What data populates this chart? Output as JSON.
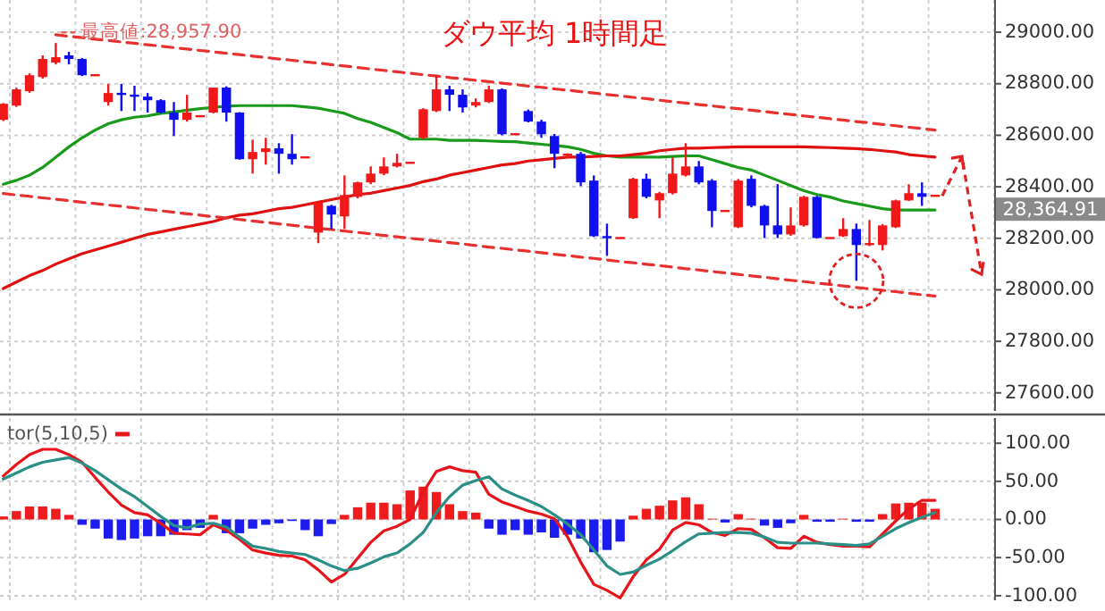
{
  "chart_data": [
    {
      "type": "candlestick",
      "title": "ダウ平均 1時間足",
      "categories": [
        null,
        null,
        null,
        null,
        null,
        null,
        null,
        null,
        null,
        null,
        null,
        null,
        null,
        null,
        null,
        null,
        null,
        null,
        null,
        null,
        null,
        null,
        null,
        null,
        null,
        null,
        null,
        null,
        null,
        null,
        null,
        null,
        null,
        null,
        null,
        null,
        null,
        null,
        null,
        null,
        null,
        null,
        null,
        null,
        null,
        null,
        null,
        null,
        null,
        null,
        null,
        null,
        null,
        null,
        null,
        null,
        null,
        null,
        null,
        null,
        null,
        null,
        null,
        null,
        null,
        null,
        null,
        null,
        null,
        null,
        null,
        null
      ],
      "ohlc": [
        [
          28660,
          28725,
          28655,
          28722
        ],
        [
          28715,
          28785,
          28710,
          28778
        ],
        [
          28771,
          28840,
          28765,
          28833
        ],
        [
          28826,
          28910,
          28820,
          28896
        ],
        [
          28882,
          28958,
          28875,
          28903
        ],
        [
          28910,
          28924,
          28875,
          28896
        ],
        [
          28896,
          28900,
          28830,
          28833
        ],
        [
          28833,
          28835,
          28830,
          28833
        ],
        [
          28729,
          28799,
          28715,
          28764
        ],
        [
          28764,
          28799,
          28694,
          28757
        ],
        [
          28757,
          28792,
          28694,
          28750
        ],
        [
          28750,
          28764,
          28688,
          28736
        ],
        [
          28736,
          28740,
          28685,
          28688
        ],
        [
          28688,
          28729,
          28597,
          28660
        ],
        [
          28660,
          28757,
          28653,
          28688
        ],
        [
          28674,
          28676,
          28672,
          28674
        ],
        [
          28688,
          28785,
          28685,
          28785
        ],
        [
          28785,
          28790,
          28653,
          28688
        ],
        [
          28688,
          28690,
          28505,
          28507
        ],
        [
          28507,
          28583,
          28451,
          28535
        ],
        [
          28535,
          28590,
          28486,
          28549
        ],
        [
          28549,
          28569,
          28451,
          28528
        ],
        [
          28528,
          28604,
          28486,
          28507
        ],
        [
          28514,
          28516,
          28512,
          28514
        ],
        [
          28222,
          28345,
          28181,
          28340
        ],
        [
          28326,
          28330,
          28236,
          28292
        ],
        [
          28285,
          28444,
          28236,
          28368
        ],
        [
          28361,
          28420,
          28355,
          28417
        ],
        [
          28417,
          28479,
          28410,
          28451
        ],
        [
          28451,
          28514,
          28445,
          28479
        ],
        [
          28479,
          28528,
          28475,
          28493
        ],
        [
          28493,
          28495,
          28490,
          28493
        ],
        [
          28590,
          28705,
          28585,
          28701
        ],
        [
          28694,
          28833,
          28690,
          28778
        ],
        [
          28778,
          28792,
          28694,
          28757
        ],
        [
          28757,
          28778,
          28688,
          28708
        ],
        [
          28715,
          28743,
          28708,
          28729
        ],
        [
          28729,
          28792,
          28725,
          28778
        ],
        [
          28778,
          28782,
          28600,
          28604
        ],
        [
          28604,
          28606,
          28602,
          28604
        ],
        [
          28694,
          28700,
          28650,
          28653
        ],
        [
          28653,
          28660,
          28590,
          28604
        ],
        [
          28597,
          28605,
          28472,
          28528
        ],
        [
          28521,
          28530,
          28515,
          28528
        ],
        [
          28528,
          28535,
          28403,
          28417
        ],
        [
          28424,
          28444,
          28205,
          28208
        ],
        [
          28208,
          28257,
          28132,
          28201
        ],
        [
          28201,
          28203,
          28199,
          28201
        ],
        [
          28278,
          28435,
          28275,
          28431
        ],
        [
          28431,
          28451,
          28355,
          28361
        ],
        [
          28347,
          28380,
          28278,
          28375
        ],
        [
          28375,
          28514,
          28370,
          28451
        ],
        [
          28444,
          28569,
          28440,
          28479
        ],
        [
          28479,
          28500,
          28410,
          28417
        ],
        [
          28424,
          28430,
          28243,
          28306
        ],
        [
          28306,
          28308,
          28304,
          28306
        ],
        [
          28243,
          28430,
          28240,
          28424
        ],
        [
          28431,
          28444,
          28320,
          28326
        ],
        [
          28326,
          28330,
          28201,
          28250
        ],
        [
          28250,
          28410,
          28201,
          28215
        ],
        [
          28215,
          28320,
          28210,
          28250
        ],
        [
          28250,
          28365,
          28245,
          28361
        ],
        [
          28361,
          28365,
          28200,
          28201
        ],
        [
          28201,
          28203,
          28199,
          28201
        ],
        [
          28208,
          28278,
          28205,
          28236
        ],
        [
          28236,
          28257,
          28035,
          28174
        ],
        [
          28174,
          28271,
          28170,
          28181
        ],
        [
          28174,
          28255,
          28153,
          28250
        ],
        [
          28243,
          28350,
          28240,
          28347
        ],
        [
          28347,
          28410,
          28345,
          28375
        ],
        [
          28375,
          28417,
          28326,
          28361
        ],
        [
          28365,
          28368,
          28362,
          28365
        ]
      ],
      "colors": [
        "#f01818",
        "#f01818",
        "#f01818",
        "#f01818",
        "#f01818",
        "#1010ee",
        "#1010ee",
        "#f01818",
        "#f01818",
        "#1010ee",
        "#1010ee",
        "#1010ee",
        "#1010ee",
        "#1010ee",
        "#f01818",
        "#f01818",
        "#f01818",
        "#1010ee",
        "#1010ee",
        "#f01818",
        "#f01818",
        "#1010ee",
        "#1010ee",
        "#f01818",
        "#f01818",
        "#1010ee",
        "#f01818",
        "#f01818",
        "#f01818",
        "#f01818",
        "#f01818",
        "#f01818",
        "#f01818",
        "#f01818",
        "#1010ee",
        "#1010ee",
        "#f01818",
        "#f01818",
        "#1010ee",
        "#f01818",
        "#1010ee",
        "#1010ee",
        "#1010ee",
        "#f01818",
        "#1010ee",
        "#1010ee",
        "#1010ee",
        "#f01818",
        "#f01818",
        "#1010ee",
        "#f01818",
        "#f01818",
        "#f01818",
        "#1010ee",
        "#1010ee",
        "#f01818",
        "#f01818",
        "#1010ee",
        "#1010ee",
        "#1010ee",
        "#f01818",
        "#f01818",
        "#1010ee",
        "#f01818",
        "#f01818",
        "#1010ee",
        "#f01818",
        "#f01818",
        "#f01818",
        "#f01818",
        "#1010ee",
        "#f01818"
      ],
      "ylim": [
        27530,
        29125
      ],
      "yticks": [
        {
          "value": 27600,
          "label": "27600.00"
        },
        {
          "value": 27800,
          "label": "27800.00"
        },
        {
          "value": 28000,
          "label": "28000.00"
        },
        {
          "value": 28200,
          "label": "28200.00"
        },
        {
          "value": 28400,
          "label": "28400.00"
        },
        {
          "value": 28600,
          "label": "28600.00"
        },
        {
          "value": 28800,
          "label": "28800.00"
        },
        {
          "value": 29000,
          "label": "29000.00"
        }
      ],
      "grid": "y",
      "series": [
        {
          "type": "line",
          "color": "#1a9a1a",
          "values": [
            28410,
            28425,
            28445,
            28475,
            28515,
            28555,
            28590,
            28620,
            28645,
            28660,
            28670,
            28675,
            28685,
            28690,
            28697,
            28703,
            28708,
            28713,
            28715,
            28715,
            28715,
            28715,
            28715,
            28710,
            28705,
            28695,
            28685,
            28665,
            28650,
            28630,
            28610,
            28585,
            28585,
            28585,
            28580,
            28580,
            28580,
            28578,
            28576,
            28575,
            28570,
            28565,
            28560,
            28555,
            28545,
            28530,
            28520,
            28515,
            28515,
            28515,
            28515,
            28518,
            28520,
            28520,
            28505,
            28490,
            28475,
            28465,
            28445,
            28425,
            28405,
            28385,
            28370,
            28360,
            28345,
            28335,
            28325,
            28315,
            28310,
            28310,
            28310,
            28310
          ]
        },
        {
          "type": "line",
          "color": "#e01010",
          "values": [
            28005,
            28030,
            28055,
            28075,
            28100,
            28120,
            28140,
            28155,
            28170,
            28185,
            28200,
            28215,
            28225,
            28235,
            28245,
            28255,
            28265,
            28280,
            28290,
            28295,
            28305,
            28315,
            28320,
            28330,
            28340,
            28350,
            28360,
            28370,
            28375,
            28385,
            28395,
            28405,
            28420,
            28430,
            28445,
            28455,
            28465,
            28475,
            28485,
            28490,
            28500,
            28505,
            28510,
            28515,
            28515,
            28518,
            28520,
            28520,
            28525,
            28530,
            28540,
            28545,
            28550,
            28550,
            28552,
            28553,
            28555,
            28555,
            28555,
            28555,
            28555,
            28555,
            28553,
            28552,
            28550,
            28548,
            28545,
            28540,
            28535,
            28525,
            28520,
            28515
          ]
        },
        {
          "type": "line",
          "color": "#e83030",
          "line_style": "dashed",
          "values": [
            null,
            null,
            null,
            null,
            28990,
            28984,
            28979,
            28973,
            28968,
            28962,
            28957,
            28951,
            28946,
            28940,
            28935,
            28929,
            28924,
            28918,
            28913,
            28907,
            28902,
            28896,
            28891,
            28885,
            28880,
            28874,
            28869,
            28863,
            28857,
            28852,
            28846,
            28841,
            28835,
            28830,
            28824,
            28819,
            28813,
            28808,
            28802,
            28797,
            28791,
            28786,
            28780,
            28775,
            28769,
            28764,
            28758,
            28753,
            28747,
            28742,
            28736,
            28730,
            28725,
            28719,
            28714,
            28708,
            28703,
            28697,
            28692,
            28686,
            28681,
            28675,
            28670,
            28664,
            28659,
            28653,
            28648,
            28642,
            28637,
            28631,
            28626,
            28620
          ]
        },
        {
          "type": "line",
          "color": "#e83030",
          "line_style": "dashed",
          "values": [
            28374,
            28368,
            28363,
            28357,
            28352,
            28346,
            28340,
            28335,
            28329,
            28324,
            28318,
            28312,
            28307,
            28301,
            28295,
            28290,
            28284,
            28279,
            28273,
            28267,
            28262,
            28256,
            28251,
            28245,
            28239,
            28234,
            28228,
            28223,
            28217,
            28211,
            28206,
            28200,
            28195,
            28189,
            28183,
            28178,
            28172,
            28166,
            28161,
            28155,
            28150,
            28144,
            28138,
            28133,
            28127,
            28122,
            28116,
            28110,
            28105,
            28099,
            28094,
            28088,
            28082,
            28077,
            28071,
            28066,
            28060,
            28054,
            28049,
            28043,
            28037,
            28032,
            28026,
            28021,
            28015,
            28009,
            28004,
            27998,
            27993,
            27987,
            27981,
            27976
          ]
        }
      ],
      "annotations": [
        {
          "text": "最高値:28,957.90",
          "y": 28957.9
        },
        "28,364.91"
      ]
    },
    {
      "type": "bar",
      "categories": [
        null,
        null,
        null,
        null,
        null,
        null,
        null,
        null,
        null,
        null,
        null,
        null,
        null,
        null,
        null,
        null,
        null,
        null,
        null,
        null,
        null,
        null,
        null,
        null,
        null,
        null,
        null,
        null,
        null,
        null,
        null,
        null,
        null,
        null,
        null,
        null,
        null,
        null,
        null,
        null,
        null,
        null,
        null,
        null,
        null,
        null,
        null,
        null,
        null,
        null,
        null,
        null,
        null,
        null,
        null,
        null,
        null,
        null,
        null,
        null,
        null,
        null,
        null,
        null,
        null,
        null,
        null,
        null,
        null,
        null,
        null,
        null
      ],
      "ylim": [
        -106,
        133
      ],
      "yticks": [
        {
          "value": -100,
          "label": "-100.00"
        },
        {
          "value": -50,
          "label": "-50.00"
        },
        {
          "value": 0,
          "label": "0.00"
        },
        {
          "value": 50,
          "label": "50.00"
        },
        {
          "value": 100,
          "label": "100.00"
        }
      ],
      "grid": "y",
      "legend": "top left",
      "series": [
        {
          "values": [
            4,
            11,
            17,
            17,
            14,
            6,
            -7,
            -12,
            -25,
            -27,
            -25,
            -22,
            -22,
            -20,
            -14,
            -11,
            6,
            -18,
            -18,
            -12,
            -7,
            -5,
            -2,
            -14,
            -22,
            -6,
            6,
            16,
            22,
            22,
            20,
            38,
            43,
            36,
            20,
            11,
            9,
            -12,
            -20,
            -14,
            -20,
            -17,
            -24,
            -20,
            -25,
            -43,
            -40,
            -29,
            5,
            14,
            18,
            25,
            29,
            20,
            1,
            -4,
            7,
            1,
            -8,
            -11,
            -5,
            6,
            -3,
            -3,
            1,
            -3,
            -3,
            7,
            21,
            22,
            22,
            14
          ],
          "colors": [
            "#ee1c1c",
            "#ee1c1c",
            "#ee1c1c",
            "#ee1c1c",
            "#ee1c1c",
            "#ee1c1c",
            "#1c1cee",
            "#1c1cee",
            "#1c1cee",
            "#1c1cee",
            "#1c1cee",
            "#1c1cee",
            "#1c1cee",
            "#1c1cee",
            "#1c1cee",
            "#1c1cee",
            "#ee1c1c",
            "#1c1cee",
            "#1c1cee",
            "#1c1cee",
            "#1c1cee",
            "#1c1cee",
            "#1c1cee",
            "#1c1cee",
            "#1c1cee",
            "#1c1cee",
            "#ee1c1c",
            "#ee1c1c",
            "#ee1c1c",
            "#ee1c1c",
            "#ee1c1c",
            "#ee1c1c",
            "#ee1c1c",
            "#ee1c1c",
            "#ee1c1c",
            "#ee1c1c",
            "#ee1c1c",
            "#1c1cee",
            "#1c1cee",
            "#1c1cee",
            "#1c1cee",
            "#1c1cee",
            "#1c1cee",
            "#1c1cee",
            "#1c1cee",
            "#1c1cee",
            "#1c1cee",
            "#1c1cee",
            "#ee1c1c",
            "#ee1c1c",
            "#ee1c1c",
            "#ee1c1c",
            "#ee1c1c",
            "#ee1c1c",
            "#ee1c1c",
            "#1c1cee",
            "#ee1c1c",
            "#ee1c1c",
            "#1c1cee",
            "#1c1cee",
            "#1c1cee",
            "#ee1c1c",
            "#1c1cee",
            "#1c1cee",
            "#ee1c1c",
            "#1c1cee",
            "#1c1cee",
            "#ee1c1c",
            "#ee1c1c",
            "#ee1c1c",
            "#ee1c1c",
            "#ee1c1c"
          ]
        },
        {
          "type": "line",
          "name": "tor(5,10,5)",
          "color": "#e8141b",
          "values": [
            57,
            72,
            85,
            92,
            92,
            85,
            75,
            55,
            36,
            19,
            9,
            6,
            -5,
            -18,
            -19,
            -20,
            -7,
            -14,
            -26,
            -40,
            -44,
            -47,
            -48,
            -53,
            -66,
            -82,
            -72,
            -51,
            -30,
            -15,
            -9,
            0,
            36,
            63,
            69,
            64,
            62,
            33,
            23,
            17,
            11,
            7,
            1,
            -23,
            -56,
            -85,
            -93,
            -103,
            -75,
            -53,
            -39,
            -14,
            -4,
            -7,
            -17,
            -21,
            -12,
            -13,
            -24,
            -37,
            -38,
            -22,
            -30,
            -33,
            -35,
            -35,
            -36,
            -19,
            -2,
            14,
            25,
            25
          ]
        },
        {
          "type": "line",
          "color": "#2a8f86",
          "values": [
            53,
            61,
            69,
            75,
            78,
            81,
            74,
            64,
            52,
            40,
            30,
            17,
            4,
            -8,
            -11,
            -6,
            -5,
            -10,
            -23,
            -35,
            -38,
            -42,
            -44,
            -46,
            -53,
            -61,
            -67,
            -64,
            -57,
            -49,
            -44,
            -32,
            -17,
            9,
            30,
            45,
            51,
            56,
            40,
            32,
            25,
            17,
            6,
            -6,
            -20,
            -40,
            -61,
            -72,
            -69,
            -60,
            -52,
            -41,
            -29,
            -19,
            -18,
            -17,
            -17,
            -18,
            -23,
            -30,
            -31,
            -31,
            -31,
            -32,
            -33,
            -34,
            -32,
            -22,
            -12,
            -4,
            3,
            9
          ]
        }
      ]
    }
  ]
}
